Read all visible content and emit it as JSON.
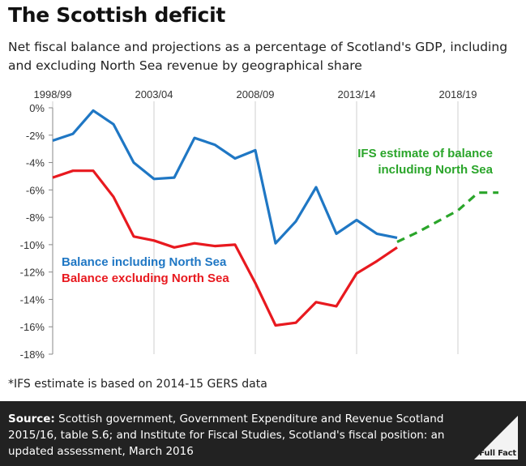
{
  "chart_data": {
    "type": "line",
    "title": "The Scottish deficit",
    "subtitle": "Net fiscal balance and projections as a percentage of Scotland's GDP, including and excluding North Sea revenue by geographical share",
    "x_tick_labels": [
      "1998/99",
      "2003/04",
      "2008/09",
      "2013/14",
      "2018/19"
    ],
    "x_tick_index": [
      0,
      5,
      10,
      15,
      20
    ],
    "x_range": [
      0,
      22
    ],
    "ylim": [
      -18,
      0
    ],
    "y_ticks": [
      0,
      -2,
      -4,
      -6,
      -8,
      -10,
      -12,
      -14,
      -16,
      -18
    ],
    "y_tick_labels": [
      "0%",
      "-2%",
      "-4%",
      "-6%",
      "-8%",
      "-10%",
      "-12%",
      "-14%",
      "-16%",
      "-18%"
    ],
    "grid": "vertical",
    "series": [
      {
        "name": "Balance including North Sea",
        "color": "#1f77c4",
        "style": "solid",
        "x": [
          0,
          1,
          2,
          3,
          4,
          5,
          6,
          7,
          8,
          9,
          10,
          11,
          12,
          13,
          14,
          15,
          16,
          17
        ],
        "values": [
          -2.4,
          -1.9,
          -0.2,
          -1.2,
          -4.0,
          -5.2,
          -5.1,
          -2.2,
          -2.7,
          -3.7,
          -3.1,
          -9.9,
          -8.3,
          -5.8,
          -9.2,
          -8.2,
          -9.2,
          -9.5
        ]
      },
      {
        "name": "Balance excluding North Sea",
        "color": "#e8191f",
        "style": "solid",
        "x": [
          0,
          1,
          2,
          3,
          4,
          5,
          6,
          7,
          8,
          9,
          10,
          11,
          12,
          13,
          14,
          15,
          16,
          17
        ],
        "values": [
          -5.1,
          -4.6,
          -4.6,
          -6.5,
          -9.4,
          -9.7,
          -10.2,
          -9.9,
          -10.1,
          -10.0,
          -12.8,
          -15.9,
          -15.7,
          -14.2,
          -14.5,
          -12.1,
          -11.2,
          -10.2
        ]
      },
      {
        "name": "IFS estimate of balance including North Sea",
        "color": "#2aa52a",
        "style": "dashed",
        "x": [
          17,
          18,
          19,
          20,
          21,
          22
        ],
        "values": [
          -9.8,
          -9.1,
          -8.3,
          -7.5,
          -6.2,
          -6.2
        ]
      }
    ],
    "annotations": {
      "blue_label": "Balance including North Sea",
      "red_label": "Balance excluding North Sea",
      "green_label_line1": "IFS estimate of balance",
      "green_label_line2": "including North Sea"
    }
  },
  "footnote": "*IFS estimate is based on 2014-15 GERS data",
  "source": {
    "label": "Source:",
    "text": " Scottish government, Government Expenditure and Revenue Scotland 2015/16, table S.6; and Institute for Fiscal Studies, Scotland's fiscal position: an updated assessment, March 2016"
  },
  "logo_text": "Full Fact"
}
